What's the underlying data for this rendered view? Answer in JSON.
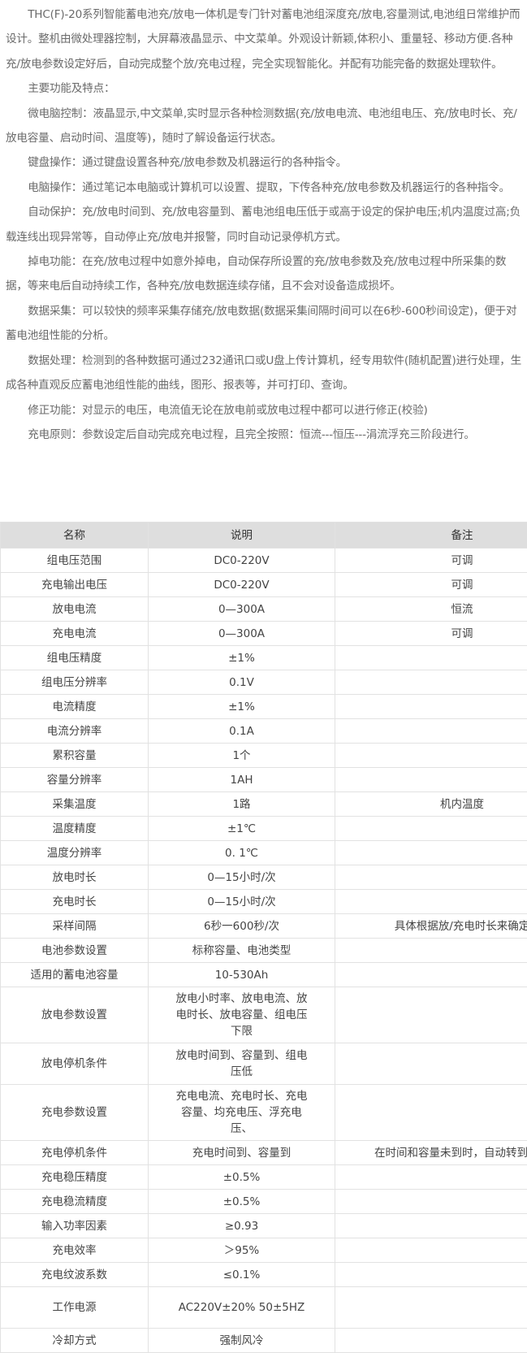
{
  "intro": {
    "paragraphs": [
      "THC(F)-20系列智能蓄电池充/放电一体机是专门针对蓄电池组深度充/放电,容量测试,电池组日常维护而设计。整机由微处理器控制，大屏幕液晶显示、中文菜单。外观设计新颖,体积小、重量轻、移动方便.各种充/放电参数设定好后，自动完成整个放/充电过程，完全实现智能化。并配有功能完备的数据处理软件。",
      "主要功能及特点：",
      "微电脑控制：液晶显示,中文菜单,实时显示各种检测数据(充/放电电流、电池组电压、充/放电时长、充/放电容量、启动时间、温度等)，随时了解设备运行状态。",
      "键盘操作：通过键盘设置各种充/放电参数及机器运行的各种指令。",
      "电脑操作：通过笔记本电脑或计算机可以设置、提取，下传各种充/放电参数及机器运行的各种指令。",
      "自动保护：充/放电时间到、充/放电容量到、蓄电池组电压低于或高于设定的保护电压;机内温度过高;负载连线出现异常等，自动停止充/放电并报警，同时自动记录停机方式。",
      "掉电功能：在充/放电过程中如意外掉电，自动保存所设置的充/放电参数及充/放电过程中所采集的数据，等来电后自动持续工作，各种充/放电数据连续存储，且不会对设备造成损坏。",
      "数据采集：可以较快的频率采集存储充/放电数据(数据采集间隔时间可以在6秒-600秒间设定)，便于对蓄电池组性能的分析。",
      "数据处理：检测到的各种数据可通过232通讯口或U盘上传计算机，经专用软件(随机配置)进行处理，生成各种直观反应蓄电池组性能的曲线，图形、报表等，并可打印、查询。",
      "修正功能：对显示的电压，电流值无论在放电前或放电过程中都可以进行修正(校验)",
      "充电原则：参数设定后自动完成充电过程，且完全按照：恒流---恒压---涓流浮充三阶段进行。"
    ]
  },
  "spec_table": {
    "headers": [
      "名称",
      "说明",
      "备注"
    ],
    "rows": [
      [
        "组电压范围",
        "DC0-220V",
        "可调"
      ],
      [
        "充电输出电压",
        "DC0-220V",
        "可调"
      ],
      [
        "放电电流",
        "0—300A",
        "恒流"
      ],
      [
        "充电电流",
        "0—300A",
        "可调"
      ],
      [
        "组电压精度",
        "±1%",
        ""
      ],
      [
        "组电压分辨率",
        "0.1V",
        ""
      ],
      [
        "电流精度",
        "±1%",
        ""
      ],
      [
        "电流分辨率",
        "0.1A",
        ""
      ],
      [
        "累积容量",
        "1个",
        ""
      ],
      [
        "容量分辨率",
        "1AH",
        ""
      ],
      [
        "采集温度",
        "1路",
        "机内温度"
      ],
      [
        "温度精度",
        "±1℃",
        ""
      ],
      [
        "温度分辨率",
        "0. 1℃",
        ""
      ],
      [
        "放电时长",
        "0—15小时/次",
        ""
      ],
      [
        "充电时长",
        "0—15小时/次",
        ""
      ],
      [
        "采样间隔",
        "6秒一600秒/次",
        "具体根据放/充电时长来确定"
      ],
      [
        "电池参数设置",
        "标称容量、电池类型",
        ""
      ],
      [
        "适用的蓄电池容量",
        "10-530Ah",
        ""
      ],
      [
        "放电参数设置",
        "放电小时率、放电电流、放电时长、放电容量、组电压下限",
        ""
      ],
      [
        "放电停机条件",
        "放电时间到、容量到、组电压低",
        ""
      ],
      [
        "充电参数设置",
        "充电电流、充电时长、充电容量、均充电压、浮充电压、",
        ""
      ],
      [
        "充电停机条件",
        "充电时间到、容量到",
        "在时间和容量未到时，自动转到浮充"
      ],
      [
        "充电稳压精度",
        "±0.5%",
        ""
      ],
      [
        "充电稳流精度",
        "±0.5%",
        ""
      ],
      [
        "输入功率因素",
        "≥0.93",
        ""
      ],
      [
        "充电效率",
        "＞95%",
        ""
      ],
      [
        "充电纹波系数",
        "≤0.1%",
        ""
      ],
      [
        "工作电源",
        "AC220V±20%  50±5HZ",
        ""
      ],
      [
        "冷却方式",
        "强制风冷",
        ""
      ]
    ]
  }
}
